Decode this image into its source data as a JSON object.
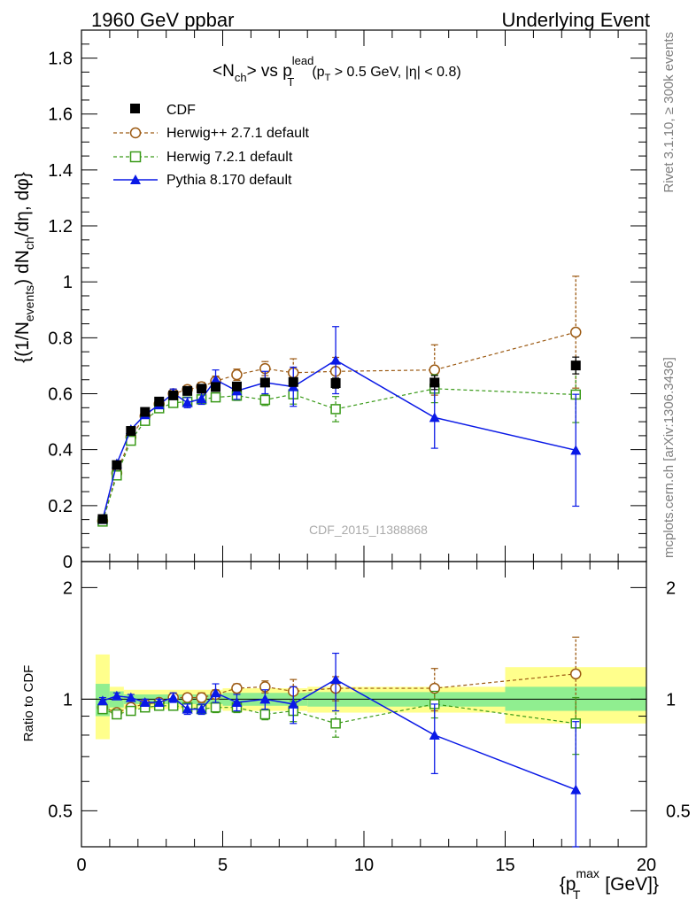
{
  "header": {
    "left": "1960 GeV ppbar",
    "right": "Underlying Event"
  },
  "side_labels": {
    "rivet": "Rivet 3.1.10, ≥ 300k events",
    "mcplots": "mcplots.cern.ch [arXiv:1306.3436]"
  },
  "analysis_id": "CDF_2015_I1388868",
  "colors": {
    "cdf": "#000000",
    "herwigpp": "#9c5a13",
    "herwig7": "#3a9a19",
    "pythia": "#0a19e6",
    "band_inner": "#90ee90",
    "band_outer": "#ffff8c"
  },
  "chart_data": [
    {
      "type": "line",
      "title": "<N_ch> vs p_T^lead (p_T > 0.5 GeV, |η| < 0.8)",
      "title_parts": {
        "a": "<N",
        "a_sub": "ch",
        "b": "> vs p",
        "b_sup": "lead",
        "b_sub": "T",
        "c": "(p",
        "c_sub": "T",
        "d": " > 0.5 GeV, |η| < 0.8)"
      },
      "ylabel": "{(1/N_events) dN_ch/dη, dφ}",
      "ylabel_parts": {
        "a": "{(1/N",
        "a_sub": "events",
        "b": ") dN",
        "b_sub": "ch",
        "c": "/dη, dφ}"
      },
      "xlim": [
        0,
        20
      ],
      "ylim": [
        0,
        1.9
      ],
      "yticks": [
        "0",
        "0.2",
        "0.4",
        "0.6",
        "0.8",
        "1",
        "1.2",
        "1.4",
        "1.6",
        "1.8"
      ],
      "legend_position": "top-left",
      "series": [
        {
          "name": "CDF",
          "style": "marker",
          "x": [
            0.75,
            1.25,
            1.75,
            2.25,
            2.75,
            3.25,
            3.75,
            4.25,
            4.75,
            5.5,
            6.5,
            7.5,
            9.0,
            12.5,
            17.5
          ],
          "y": [
            0.152,
            0.345,
            0.467,
            0.535,
            0.572,
            0.594,
            0.61,
            0.618,
            0.624,
            0.626,
            0.64,
            0.642,
            0.638,
            0.64,
            0.701
          ],
          "yerr": [
            0.005,
            0.005,
            0.006,
            0.006,
            0.006,
            0.007,
            0.007,
            0.008,
            0.009,
            0.01,
            0.012,
            0.015,
            0.018,
            0.025,
            0.03
          ]
        },
        {
          "name": "Herwig++ 2.7.1 default",
          "style": "dashed-open-circle",
          "x": [
            0.75,
            1.25,
            1.75,
            2.25,
            2.75,
            3.25,
            3.75,
            4.25,
            4.75,
            5.5,
            6.5,
            7.5,
            9.0,
            12.5,
            17.5
          ],
          "y": [
            0.145,
            0.316,
            0.445,
            0.52,
            0.563,
            0.6,
            0.615,
            0.625,
            0.645,
            0.668,
            0.69,
            0.675,
            0.68,
            0.685,
            0.82
          ],
          "yerr": [
            0.004,
            0.005,
            0.006,
            0.008,
            0.01,
            0.012,
            0.014,
            0.016,
            0.018,
            0.02,
            0.025,
            0.05,
            0.05,
            0.09,
            0.2
          ]
        },
        {
          "name": "Herwig 7.2.1 default",
          "style": "dashed-open-square",
          "x": [
            0.75,
            1.25,
            1.75,
            2.25,
            2.75,
            3.25,
            3.75,
            4.25,
            4.75,
            5.5,
            6.5,
            7.5,
            9.0,
            12.5,
            17.5
          ],
          "y": [
            0.143,
            0.308,
            0.432,
            0.503,
            0.548,
            0.567,
            0.572,
            0.58,
            0.587,
            0.593,
            0.578,
            0.598,
            0.545,
            0.618,
            0.597
          ],
          "yerr": [
            0.004,
            0.005,
            0.006,
            0.007,
            0.009,
            0.01,
            0.012,
            0.013,
            0.015,
            0.017,
            0.02,
            0.035,
            0.045,
            0.05,
            0.1
          ]
        },
        {
          "name": "Pythia 8.170 default",
          "style": "solid-filled-triangle",
          "x": [
            0.75,
            1.25,
            1.75,
            2.25,
            2.75,
            3.25,
            3.75,
            4.25,
            4.75,
            5.5,
            6.5,
            7.5,
            9.0,
            12.5,
            17.5
          ],
          "y": [
            0.15,
            0.35,
            0.472,
            0.525,
            0.56,
            0.602,
            0.568,
            0.582,
            0.65,
            0.61,
            0.64,
            0.625,
            0.72,
            0.515,
            0.398
          ],
          "yerr": [
            0.004,
            0.006,
            0.008,
            0.01,
            0.012,
            0.015,
            0.018,
            0.02,
            0.035,
            0.03,
            0.04,
            0.07,
            0.12,
            0.11,
            0.2
          ]
        }
      ]
    },
    {
      "type": "line",
      "ylabel": "Ratio to CDF",
      "xlabel": "{p_T^max [GeV]}",
      "xlabel_parts": {
        "a": "{p",
        "a_sup": "max",
        "a_sub": "T",
        "b": " [GeV]}"
      },
      "xlim": [
        0,
        20
      ],
      "ylim": [
        0.4,
        2.35
      ],
      "scale": "log",
      "xticks": [
        "0",
        "5",
        "10",
        "15",
        "20"
      ],
      "yticks": [
        "0.5",
        "1",
        "2"
      ],
      "bands": [
        {
          "x0": 0.5,
          "x1": 1.0,
          "inner": [
            0.9,
            1.1
          ],
          "outer": [
            0.78,
            1.32
          ]
        },
        {
          "x0": 1.0,
          "x1": 1.5,
          "inner": [
            0.95,
            1.05
          ],
          "outer": [
            0.92,
            1.08
          ]
        },
        {
          "x0": 1.5,
          "x1": 5.0,
          "inner": [
            0.97,
            1.03
          ],
          "outer": [
            0.94,
            1.06
          ]
        },
        {
          "x0": 5.0,
          "x1": 8.0,
          "inner": [
            0.96,
            1.04
          ],
          "outer": [
            0.93,
            1.07
          ]
        },
        {
          "x0": 8.0,
          "x1": 10.0,
          "inner": [
            0.955,
            1.045
          ],
          "outer": [
            0.92,
            1.08
          ]
        },
        {
          "x0": 10.0,
          "x1": 15.0,
          "inner": [
            0.955,
            1.045
          ],
          "outer": [
            0.92,
            1.08
          ]
        },
        {
          "x0": 15.0,
          "x1": 20.0,
          "inner": [
            0.93,
            1.08
          ],
          "outer": [
            0.86,
            1.22
          ]
        }
      ],
      "series": [
        {
          "name": "Herwig++ 2.7.1 default",
          "x": [
            0.75,
            1.25,
            1.75,
            2.25,
            2.75,
            3.25,
            3.75,
            4.25,
            4.75,
            5.5,
            6.5,
            7.5,
            9.0,
            12.5,
            17.5
          ],
          "y": [
            0.95,
            0.92,
            0.95,
            0.97,
            0.98,
            1.01,
            1.01,
            1.01,
            1.03,
            1.07,
            1.08,
            1.05,
            1.07,
            1.07,
            1.17
          ],
          "yerr": [
            0.02,
            0.02,
            0.02,
            0.02,
            0.02,
            0.02,
            0.02,
            0.03,
            0.03,
            0.03,
            0.04,
            0.08,
            0.08,
            0.14,
            0.3
          ]
        },
        {
          "name": "Herwig 7.2.1 default",
          "x": [
            0.75,
            1.25,
            1.75,
            2.25,
            2.75,
            3.25,
            3.75,
            4.25,
            4.75,
            5.5,
            6.5,
            7.5,
            9.0,
            12.5,
            17.5
          ],
          "y": [
            0.94,
            0.91,
            0.93,
            0.95,
            0.96,
            0.96,
            0.95,
            0.94,
            0.95,
            0.95,
            0.91,
            0.93,
            0.86,
            0.97,
            0.86
          ],
          "yerr": [
            0.02,
            0.02,
            0.02,
            0.02,
            0.02,
            0.02,
            0.02,
            0.02,
            0.03,
            0.03,
            0.03,
            0.06,
            0.07,
            0.08,
            0.15
          ]
        },
        {
          "name": "Pythia 8.170 default",
          "x": [
            0.75,
            1.25,
            1.75,
            2.25,
            2.75,
            3.25,
            3.75,
            4.25,
            4.75,
            5.5,
            6.5,
            7.5,
            9.0,
            12.5,
            17.5
          ],
          "y": [
            0.99,
            1.02,
            1.01,
            0.98,
            0.98,
            1.01,
            0.94,
            0.94,
            1.04,
            0.98,
            1.0,
            0.97,
            1.13,
            0.8,
            0.57
          ],
          "yerr": [
            0.02,
            0.02,
            0.02,
            0.02,
            0.02,
            0.03,
            0.03,
            0.03,
            0.06,
            0.05,
            0.06,
            0.11,
            0.2,
            0.17,
            0.3
          ]
        }
      ]
    }
  ]
}
